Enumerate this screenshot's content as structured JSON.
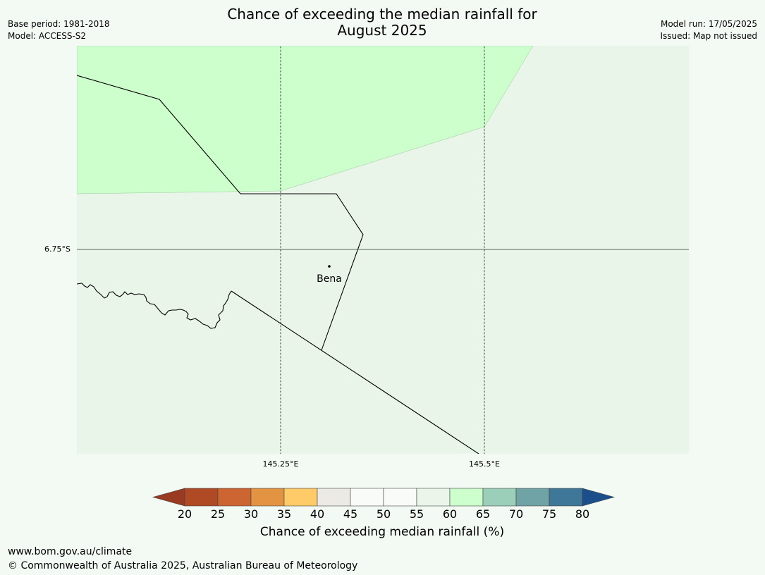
{
  "header": {
    "title_line1": "Chance of exceeding the median rainfall for",
    "title_line2": "August 2025",
    "base_period": "Base period: 1981-2018",
    "model": "Model: ACCESS-S2",
    "model_run": "Model run: 17/05/2025",
    "issued": "Issued: Map not issued"
  },
  "map": {
    "latitude_label": "6.75°S",
    "longitude_labels": [
      "145.25°E",
      "145.5°E"
    ],
    "places": [
      {
        "name": "Bena"
      }
    ],
    "regions": [
      {
        "category": "60-65",
        "color": "#ccffcc"
      },
      {
        "category": "55-60",
        "color": "#eaf5ea"
      }
    ]
  },
  "legend": {
    "title": "Chance of exceeding median rainfall (%)",
    "ticks": [
      "20",
      "25",
      "30",
      "35",
      "40",
      "45",
      "50",
      "55",
      "60",
      "65",
      "70",
      "75",
      "80"
    ],
    "under_color": "#9b3a22",
    "over_color": "#1a4f8c",
    "colors": [
      "#b04a25",
      "#cd6532",
      "#e39443",
      "#ffca68",
      "#eceae5",
      "#f8fbf8",
      "#f8fbf8",
      "#eaf6ea",
      "#ccffcc",
      "#9ccfba",
      "#6fa3a6",
      "#3f7799"
    ]
  },
  "footer": {
    "url": "www.bom.gov.au/climate",
    "copyright": "© Commonwealth of Australia 2025, Australian Bureau of Meteorology"
  }
}
